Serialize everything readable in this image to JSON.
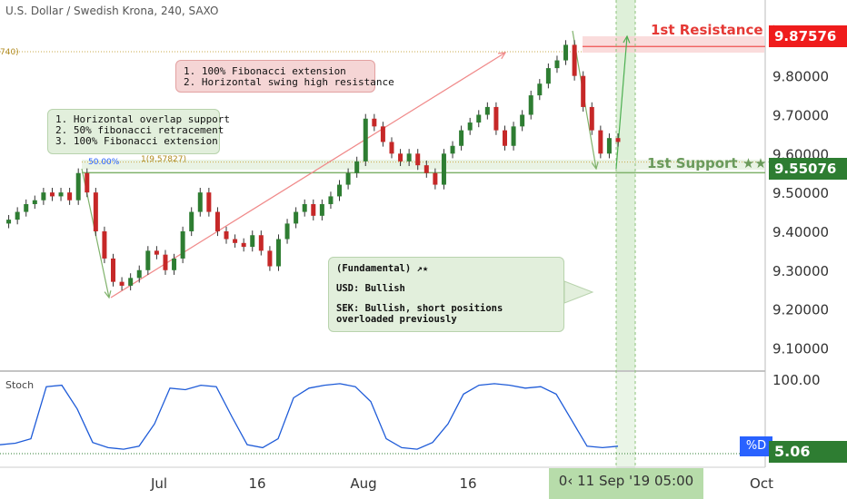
{
  "header": {
    "title": "U.S. Dollar / Swedish Krona, 240, SAXO"
  },
  "colors": {
    "up": "#2e7d32",
    "down": "#c62828",
    "stoch_line": "#1e5bd8",
    "resistance": "#ef1c1c",
    "support": "#2e7d32",
    "zone_green": "#b7dcaa"
  },
  "annotations": {
    "resistance_label": "1st Resistance ★",
    "support_label": "1st Support ★★★",
    "resistance_price": "9.87576",
    "support_price": "9.55076",
    "resistance_note": [
      "1. 100% Fibonacci extension",
      "2. Horizontal swing high resistance"
    ],
    "support_note": [
      "1. Horizontal overlap support",
      "2. 50% fibonacci retracement",
      "3. 100% Fibonacci extension"
    ],
    "fundamental_title": "(Fundamental) ↗★",
    "fundamental_usd": "USD: Bullish",
    "fundamental_sek": "SEK: Bullish, short positions overloaded previously",
    "fib_50_label": "50.00%",
    "fib_1_label": "1(9.57827)",
    "fib_left_label": "740)"
  },
  "stoch": {
    "label": "Stoch",
    "value": "5.06",
    "pct_label": "%D",
    "top_label": "100.00"
  },
  "date_box": "0‹ 11 Sep '19   05:00",
  "chart_data": {
    "type": "candlestick",
    "title": "U.S. Dollar / Swedish Krona, 240, SAXO",
    "y_ticks": [
      "9.90000",
      "9.80000",
      "9.70000",
      "9.60000",
      "9.50000",
      "9.40000",
      "9.30000",
      "9.20000",
      "9.10000"
    ],
    "y_tick_values": [
      9.9,
      9.8,
      9.7,
      9.6,
      9.5,
      9.4,
      9.3,
      9.2,
      9.1
    ],
    "ylim": [
      9.08,
      9.93
    ],
    "x_ticks": [
      "Jul",
      "16",
      "Aug",
      "16",
      "Oct"
    ],
    "resistance": 9.87576,
    "support": 9.55076,
    "fib_level": 9.57827,
    "series_path_prices": [
      9.42,
      9.43,
      9.45,
      9.47,
      9.48,
      9.5,
      9.49,
      9.5,
      9.48,
      9.55,
      9.5,
      9.4,
      9.33,
      9.27,
      9.26,
      9.28,
      9.3,
      9.35,
      9.34,
      9.3,
      9.33,
      9.4,
      9.45,
      9.5,
      9.45,
      9.4,
      9.38,
      9.37,
      9.36,
      9.39,
      9.35,
      9.31,
      9.38,
      9.42,
      9.45,
      9.47,
      9.44,
      9.47,
      9.49,
      9.52,
      9.55,
      9.58,
      9.69,
      9.67,
      9.63,
      9.6,
      9.58,
      9.6,
      9.57,
      9.55,
      9.52,
      9.6,
      9.62,
      9.66,
      9.68,
      9.7,
      9.72,
      9.66,
      9.62,
      9.67,
      9.7,
      9.75,
      9.78,
      9.82,
      9.84,
      9.88,
      9.8,
      9.72,
      9.66,
      9.6,
      9.64,
      9.63
    ],
    "stoch_values": [
      12,
      14,
      20,
      90,
      92,
      60,
      15,
      8,
      6,
      10,
      40,
      88,
      86,
      92,
      90,
      50,
      12,
      8,
      20,
      75,
      88,
      92,
      94,
      90,
      70,
      20,
      8,
      6,
      15,
      40,
      80,
      92,
      94,
      92,
      88,
      90,
      80,
      45,
      10,
      8,
      10
    ]
  }
}
